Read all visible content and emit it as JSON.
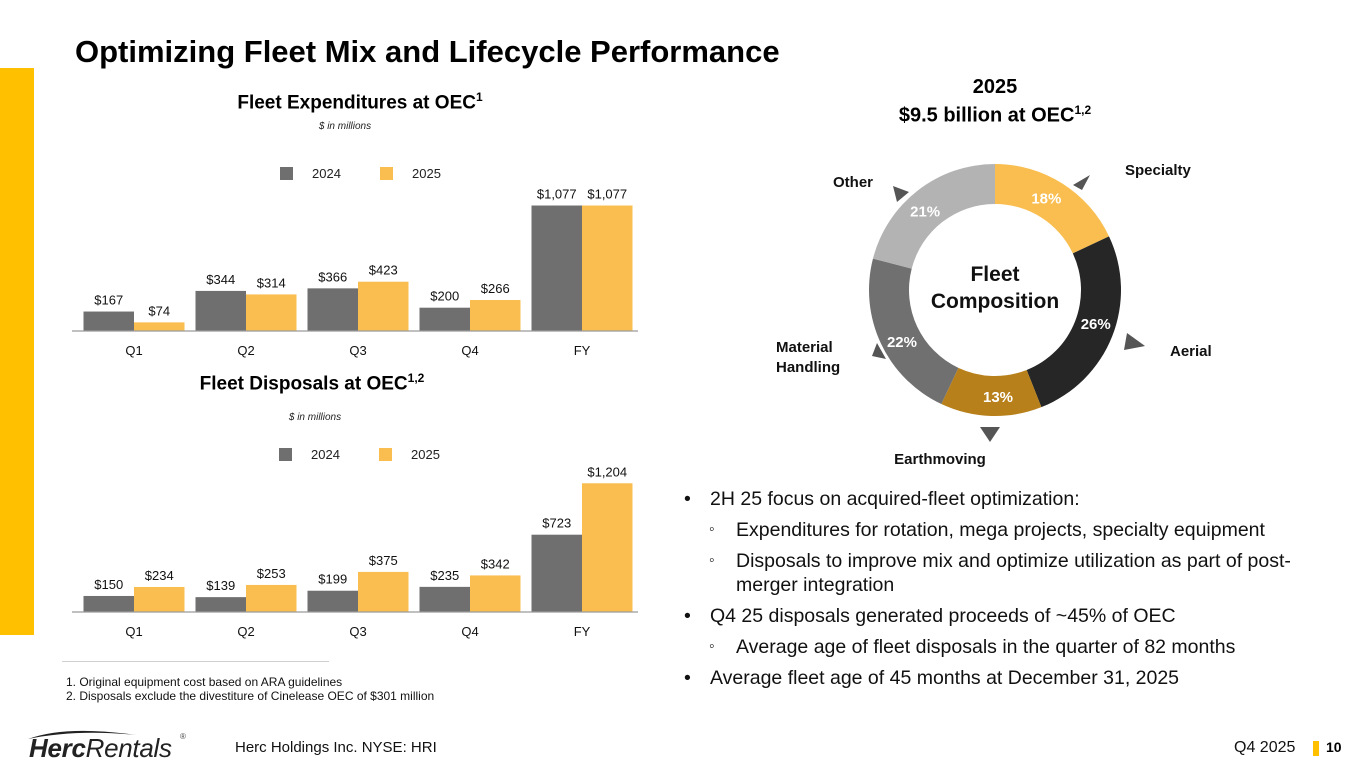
{
  "page": {
    "title": "Optimizing Fleet Mix and Lifecycle Performance",
    "accent_color": "#FFC000",
    "company": "Herc Holdings Inc.  NYSE: HRI",
    "logo": {
      "bold": "Herc",
      "light": "Rentals",
      "reg": "®"
    },
    "period": "Q4 2025",
    "page_number": "10"
  },
  "charts_text": {
    "expenditures": {
      "title": "Fleet Expenditures at OEC",
      "title_sup": "1",
      "subtitle": "$ in millions"
    },
    "disposals": {
      "title": "Fleet Disposals at OEC",
      "title_sup": "1,2",
      "subtitle": "$ in millions"
    },
    "composition": {
      "title_line1": "2025",
      "title_line2": "$9.5 billion at OEC",
      "title_sup": "1,2",
      "center_line1": "Fleet",
      "center_line2": "Composition"
    }
  },
  "chart_data": [
    {
      "type": "bar",
      "id": "expenditures",
      "title": "Fleet Expenditures at OEC1",
      "subtitle": "$ in millions",
      "categories": [
        "Q1",
        "Q2",
        "Q3",
        "Q4",
        "FY"
      ],
      "series": [
        {
          "name": "2024",
          "color": "#6F6F6F",
          "values": [
            167,
            344,
            366,
            200,
            1077
          ],
          "labels": [
            "$167",
            "$344",
            "$366",
            "$200",
            "$1,077"
          ]
        },
        {
          "name": "2025",
          "color": "#F9BE4F",
          "values": [
            74,
            314,
            423,
            266,
            1077
          ],
          "labels": [
            "$74",
            "$314",
            "$423",
            "$266",
            "$1,077"
          ]
        }
      ],
      "legend": "top-center",
      "grid": false,
      "ylim": [
        0,
        1150
      ]
    },
    {
      "type": "bar",
      "id": "disposals",
      "title": "Fleet Disposals at OEC1,2",
      "subtitle": "$ in millions",
      "categories": [
        "Q1",
        "Q2",
        "Q3",
        "Q4",
        "FY"
      ],
      "series": [
        {
          "name": "2024",
          "color": "#6F6F6F",
          "values": [
            150,
            139,
            199,
            235,
            723
          ],
          "labels": [
            "$150",
            "$139",
            "$199",
            "$235",
            "$723"
          ]
        },
        {
          "name": "2025",
          "color": "#F9BE4F",
          "values": [
            234,
            253,
            375,
            342,
            1204
          ],
          "labels": [
            "$234",
            "$253",
            "$375",
            "$342",
            "$1,204"
          ]
        }
      ],
      "legend": "top-center",
      "grid": false,
      "ylim": [
        0,
        1300
      ]
    },
    {
      "type": "pie",
      "id": "composition",
      "title": "2025 $9.5 billion at OEC1,2",
      "center_label": "Fleet Composition",
      "donut": true,
      "slices": [
        {
          "label": "Specialty",
          "value": 18,
          "text": "18%",
          "color": "#F9BE4F"
        },
        {
          "label": "Aerial",
          "value": 26,
          "text": "26%",
          "color": "#262626"
        },
        {
          "label": "Earthmoving",
          "value": 13,
          "text": "13%",
          "color": "#B8801A"
        },
        {
          "label": "Material Handling",
          "value": 22,
          "text": "22%",
          "color": "#707070"
        },
        {
          "label": "Other",
          "value": 21,
          "text": "21%",
          "color": "#B3B3B3"
        }
      ]
    }
  ],
  "bullets": [
    {
      "level": 1,
      "text": "2H 25 focus on acquired-fleet optimization:"
    },
    {
      "level": 2,
      "text": "Expenditures for rotation, mega projects, specialty equipment"
    },
    {
      "level": 2,
      "text": "Disposals to improve mix and optimize utilization as part of post-merger integration"
    },
    {
      "level": 1,
      "text": "Q4 25 disposals generated proceeds of ~45% of OEC"
    },
    {
      "level": 2,
      "text": "Average age of fleet disposals in the quarter of 82 months"
    },
    {
      "level": 1,
      "text": "Average fleet age of 45 months at December 31, 2025"
    }
  ],
  "footnotes": [
    "1. Original equipment cost based on ARA guidelines",
    "2. Disposals exclude the divestiture of Cinelease OEC of $301 million"
  ]
}
